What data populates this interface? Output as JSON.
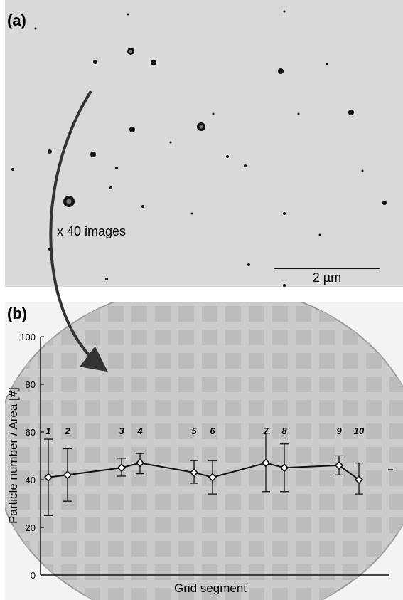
{
  "panel_a": {
    "label": "(a)",
    "arrow_caption": "x 40 images",
    "scale_bar_label": "2 µm"
  },
  "panel_b": {
    "label": "(b)"
  },
  "chart_data": {
    "type": "line",
    "xlabel": "Grid segment",
    "ylabel": "Particle number / Area [#]",
    "ylim": [
      0,
      100
    ],
    "yticks": [
      0,
      20,
      40,
      60,
      80,
      100
    ],
    "grid": false,
    "series": [
      {
        "segments": [
          "1",
          "2",
          "3",
          "4",
          "5",
          "6",
          "7",
          "8",
          "9",
          "10"
        ],
        "values": [
          41,
          42,
          45,
          47,
          43,
          41,
          47,
          45,
          46,
          40
        ],
        "error_low": [
          25,
          31,
          41.5,
          42.5,
          38.5,
          34,
          35,
          35,
          42,
          34
        ],
        "error_high": [
          57,
          53,
          49,
          51,
          48,
          48,
          59.5,
          55,
          50,
          47
        ]
      }
    ]
  },
  "colors": {
    "background_micrograph": "#d8d8d8",
    "grid_bg": "#c9c9c9",
    "grid_cell": "#b8b8b8",
    "line": "#1a1a1a"
  }
}
